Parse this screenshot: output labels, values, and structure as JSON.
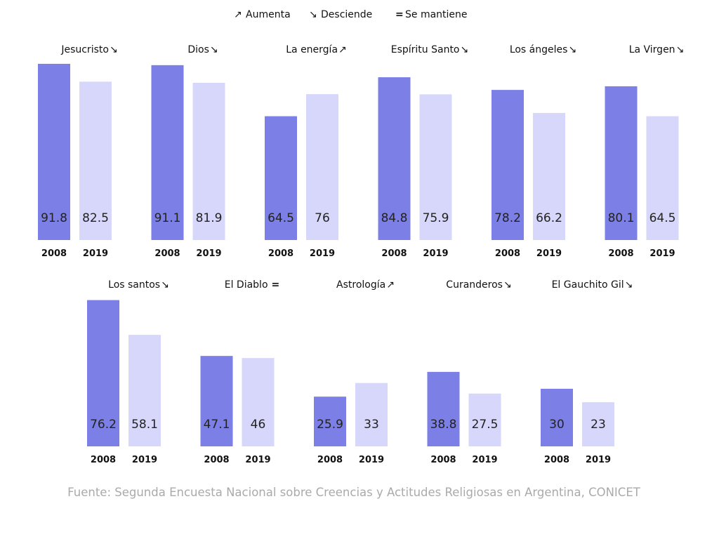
{
  "legend": {
    "up": {
      "symbol": "↗",
      "label": "Aumenta"
    },
    "down": {
      "symbol": "↘",
      "label": "Desciende"
    },
    "same": {
      "symbol": "=",
      "label": "Se mantiene"
    }
  },
  "colors": {
    "bar_2008": "#7b7fe6",
    "bar_2019": "#d6d7fb",
    "text": "#111111",
    "source": "#aaaaaa"
  },
  "source": "Fuente: Segunda Encuesta Nacional sobre Creencias y Actitudes Religiosas en Argentina, CONICET",
  "chart_data": [
    {
      "type": "bar",
      "title": "Jesucristo",
      "trend": "↘",
      "categories": [
        "2008",
        "2019"
      ],
      "values": [
        91.8,
        82.5
      ],
      "ylim": [
        0,
        100
      ]
    },
    {
      "type": "bar",
      "title": "Dios",
      "trend": "↘",
      "categories": [
        "2008",
        "2019"
      ],
      "values": [
        91.1,
        81.9
      ],
      "ylim": [
        0,
        100
      ]
    },
    {
      "type": "bar",
      "title": "La energía",
      "trend": "↗",
      "categories": [
        "2008",
        "2019"
      ],
      "values": [
        64.5,
        76
      ],
      "ylim": [
        0,
        100
      ]
    },
    {
      "type": "bar",
      "title": "Espíritu Santo",
      "trend": "↘",
      "categories": [
        "2008",
        "2019"
      ],
      "values": [
        84.8,
        75.9
      ],
      "ylim": [
        0,
        100
      ]
    },
    {
      "type": "bar",
      "title": "Los ángeles",
      "trend": "↘",
      "categories": [
        "2008",
        "2019"
      ],
      "values": [
        78.2,
        66.2
      ],
      "ylim": [
        0,
        100
      ]
    },
    {
      "type": "bar",
      "title": "La Virgen",
      "trend": "↘",
      "categories": [
        "2008",
        "2019"
      ],
      "values": [
        80.1,
        64.5
      ],
      "ylim": [
        0,
        100
      ]
    },
    {
      "type": "bar",
      "title": "Los santos",
      "trend": "↘",
      "categories": [
        "2008",
        "2019"
      ],
      "values": [
        76.2,
        58.1
      ],
      "ylim": [
        0,
        100
      ]
    },
    {
      "type": "bar",
      "title": "El Diablo",
      "trend": "=",
      "categories": [
        "2008",
        "2019"
      ],
      "values": [
        47.1,
        46
      ],
      "ylim": [
        0,
        100
      ]
    },
    {
      "type": "bar",
      "title": "Astrología",
      "trend": "↗",
      "categories": [
        "2008",
        "2019"
      ],
      "values": [
        25.9,
        33
      ],
      "ylim": [
        0,
        100
      ]
    },
    {
      "type": "bar",
      "title": "Curanderos",
      "trend": "↘",
      "categories": [
        "2008",
        "2019"
      ],
      "values": [
        38.8,
        27.5
      ],
      "ylim": [
        0,
        100
      ]
    },
    {
      "type": "bar",
      "title": "El Gauchito Gil",
      "trend": "↘",
      "categories": [
        "2008",
        "2019"
      ],
      "values": [
        30,
        23
      ],
      "ylim": [
        0,
        100
      ]
    }
  ]
}
